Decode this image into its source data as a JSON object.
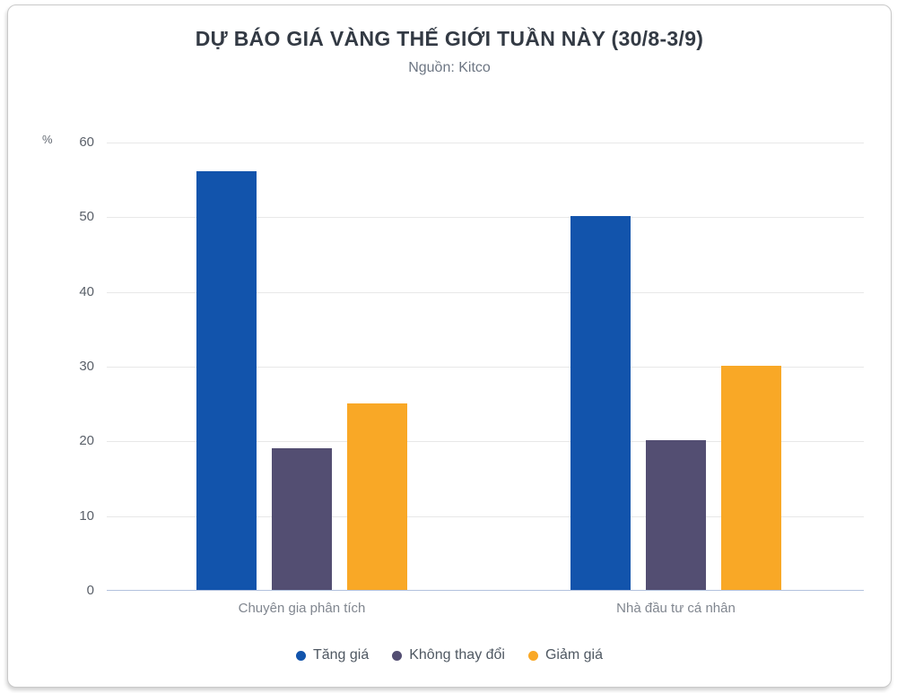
{
  "chart_data": {
    "type": "bar",
    "title": "DỰ BÁO GIÁ VÀNG THẾ GIỚI TUẦN NÀY (30/8-3/9)",
    "subtitle": "Nguồn: Kitco",
    "unit_label": "%",
    "categories": [
      "Chuyên gia phân tích",
      "Nhà đầu tư cá nhân"
    ],
    "series": [
      {
        "name": "Tăng giá",
        "color": "#1254ac",
        "values": [
          56,
          50
        ]
      },
      {
        "name": "Không thay đổi",
        "color": "#534e72",
        "values": [
          19,
          20
        ]
      },
      {
        "name": "Giảm giá",
        "color": "#f9a826",
        "values": [
          25,
          30
        ]
      }
    ],
    "ylim": [
      0,
      60
    ],
    "yticks": [
      0,
      10,
      20,
      30,
      40,
      50,
      60
    ],
    "grid": true,
    "legend_position": "bottom",
    "colors": {
      "axis_line": "#b3c2de",
      "gridline": "#e8e8e8",
      "title_text": "#333a44",
      "subtitle_text": "#6d7683",
      "tick_text": "#5a6069",
      "category_text": "#80868f",
      "legend_text": "#4f5862"
    }
  }
}
